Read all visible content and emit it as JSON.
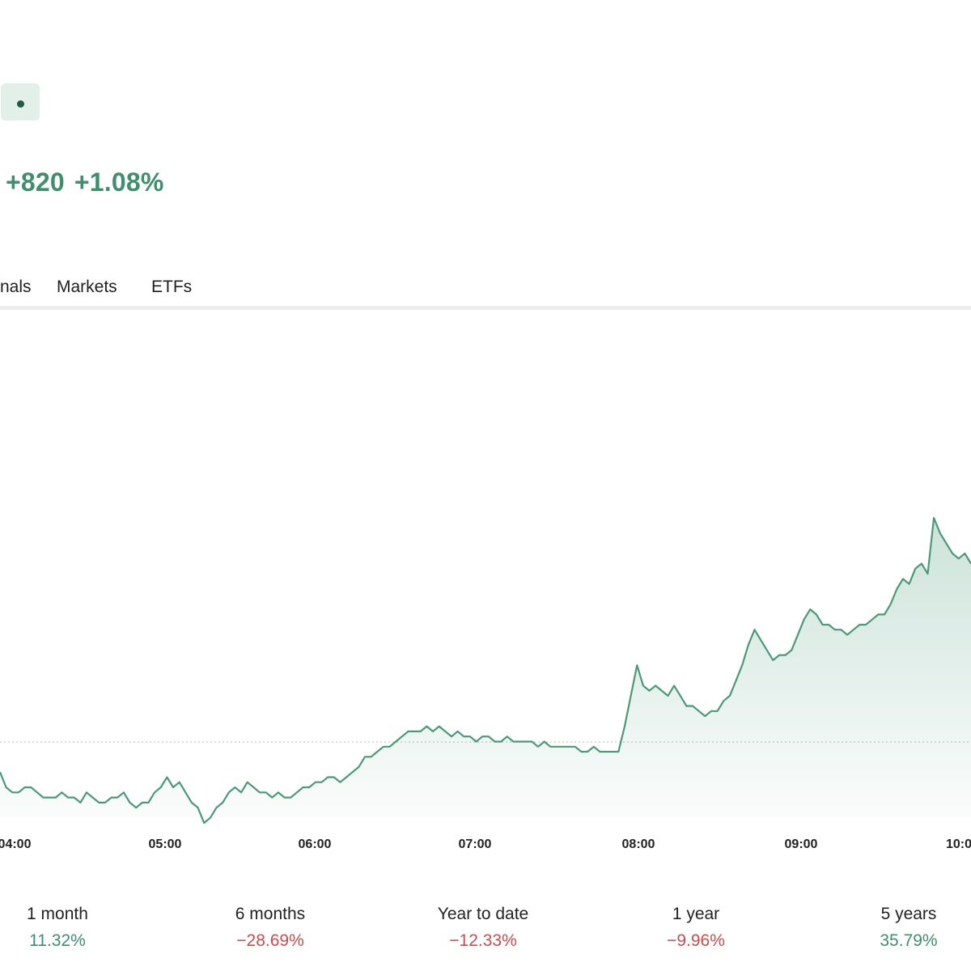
{
  "header": {
    "change_abs": "+820",
    "change_pct": "+1.08%"
  },
  "tabs": [
    {
      "label": "nals"
    },
    {
      "label": "Markets"
    },
    {
      "label": "ETFs"
    }
  ],
  "colors": {
    "positive": "#3d8f6d",
    "negative": "#d04b4b",
    "line": "#4a9a7a"
  },
  "chart_data": {
    "type": "area",
    "x_tick_labels": [
      "04:00",
      "05:00",
      "06:00",
      "07:00",
      "08:00",
      "09:00",
      "10:0"
    ],
    "y_axis_labels": "none",
    "grid": "baseline dotted line only",
    "series": [
      {
        "values": [
          34,
          31,
          30,
          30,
          31,
          31,
          30,
          29,
          29,
          29,
          30,
          29,
          29,
          28,
          30,
          29,
          28,
          28,
          29,
          29,
          30,
          28,
          27,
          28,
          28,
          30,
          31,
          33,
          31,
          32,
          30,
          28,
          27,
          24,
          25,
          27,
          28,
          30,
          31,
          30,
          32,
          31,
          30,
          30,
          29,
          30,
          29,
          29,
          30,
          31,
          31,
          32,
          32,
          33,
          33,
          32,
          33,
          34,
          35,
          37,
          37,
          38,
          39,
          39,
          40,
          41,
          42,
          42,
          42,
          43,
          42,
          43,
          42,
          41,
          42,
          41,
          41,
          40,
          41,
          41,
          40,
          40,
          41,
          40,
          40,
          40,
          40,
          39,
          40,
          39,
          39,
          39,
          39,
          39,
          38,
          38,
          39,
          38,
          38,
          38,
          38,
          43,
          49,
          55,
          51,
          50,
          51,
          50,
          49,
          51,
          49,
          47,
          47,
          46,
          45,
          46,
          46,
          48,
          49,
          52,
          55,
          59,
          62,
          60,
          58,
          56,
          57,
          57,
          58,
          61,
          64,
          66,
          65,
          63,
          63,
          62,
          62,
          61,
          62,
          63,
          63,
          64,
          65,
          65,
          67,
          70,
          72,
          71,
          74,
          75,
          73,
          84,
          81,
          79,
          77,
          76,
          77,
          75
        ]
      }
    ]
  },
  "periods": [
    {
      "label": "1 month",
      "value": "11.32%",
      "trend": "positive"
    },
    {
      "label": "6 months",
      "value": "−28.69%",
      "trend": "negative"
    },
    {
      "label": "Year to date",
      "value": "−12.33%",
      "trend": "negative"
    },
    {
      "label": "1 year",
      "value": "−9.96%",
      "trend": "negative"
    },
    {
      "label": "5 years",
      "value": "35.79%",
      "trend": "positive"
    }
  ]
}
